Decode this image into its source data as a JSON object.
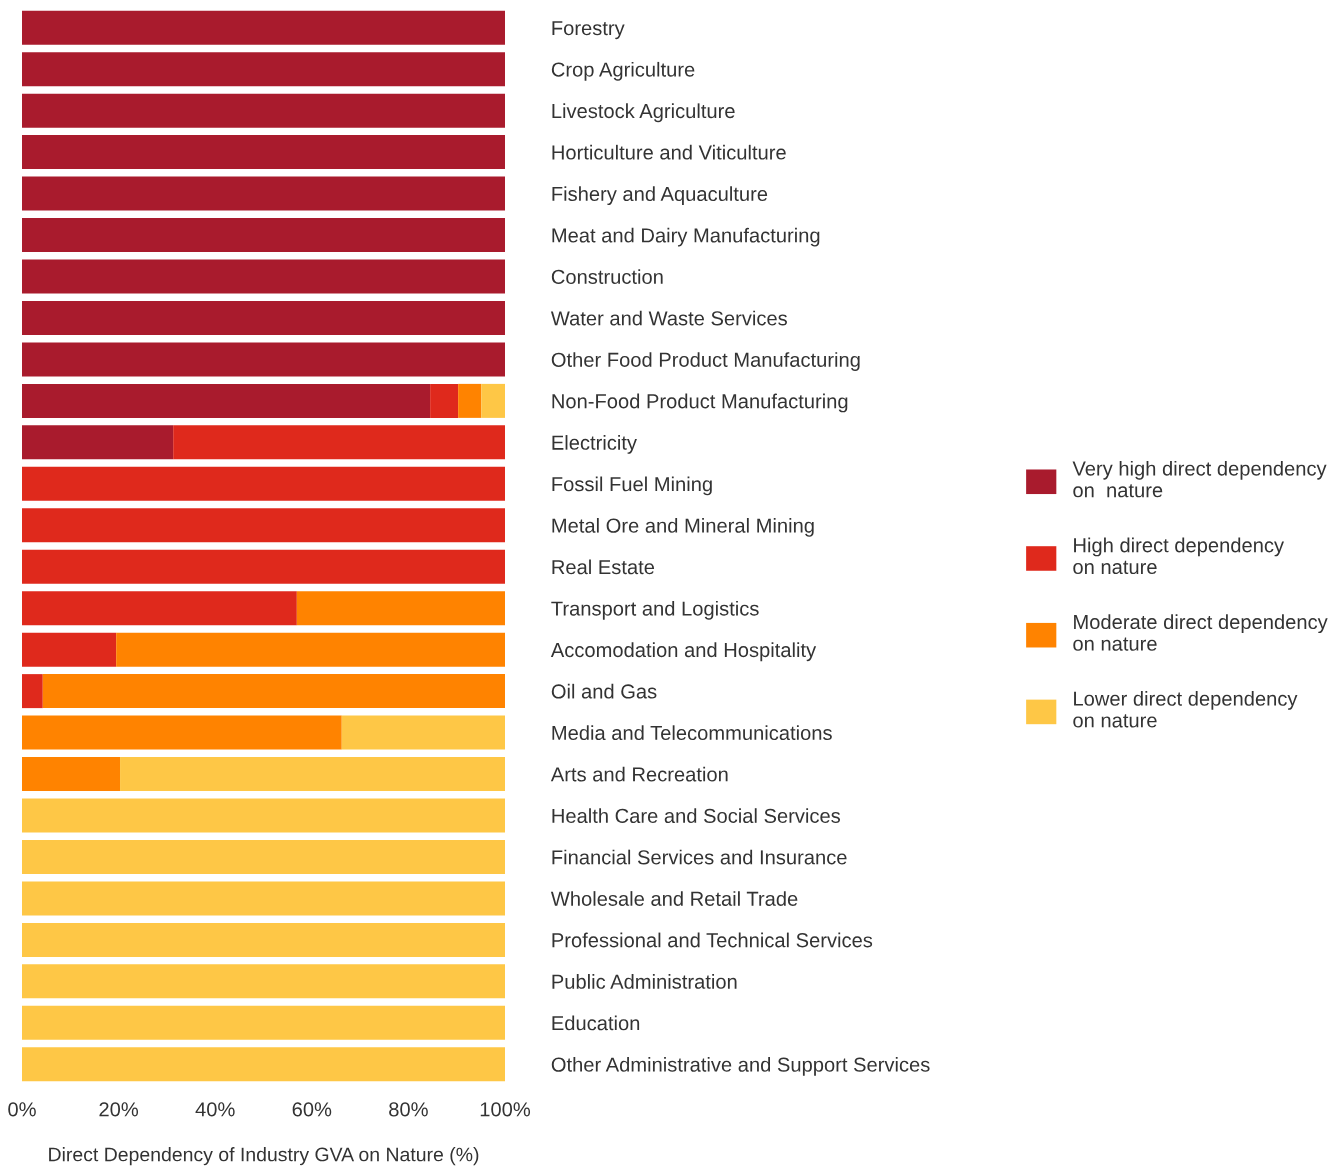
{
  "chart_data": {
    "type": "bar",
    "orientation": "horizontal",
    "stacked": true,
    "xlabel": "Direct Dependency of Industry GVA on Nature (%)",
    "categories": [
      "Forestry",
      "Crop Agriculture",
      "Livestock Agriculture",
      "Horticulture and Viticulture",
      "Fishery and Aquaculture",
      "Meat and Dairy Manufacturing",
      "Construction",
      "Water and Waste Services",
      "Other Food Product Manufacturing",
      "Non-Food Product Manufacturing",
      "Electricity",
      "Fossil Fuel Mining",
      "Metal Ore and Mineral Mining",
      "Real Estate",
      "Transport and Logistics",
      "Accomodation and Hospitality",
      "Oil and Gas",
      "Media and Telecommunications",
      "Arts and Recreation",
      "Health Care and Social Services",
      "Financial Services and Insurance",
      "Wholesale and Retail Trade",
      "Professional and Technical Services",
      "Public Administration",
      "Education",
      "Other Administrative and Support Services"
    ],
    "series": [
      {
        "name": "Very high direct dependency\non  nature",
        "color": "#a91b2d",
        "values": [
          100,
          100,
          100,
          100,
          100,
          100,
          100,
          100,
          100,
          84.5,
          31.3,
          0,
          0,
          0,
          0,
          0,
          0,
          0,
          0,
          0,
          0,
          0,
          0,
          0,
          0,
          0
        ]
      },
      {
        "name": "High direct dependency\non nature",
        "color": "#df291c",
        "values": [
          0,
          0,
          0,
          0,
          0,
          0,
          0,
          0,
          0,
          5.8,
          68.7,
          100,
          100,
          100,
          56.9,
          19.5,
          4.3,
          0,
          0,
          0,
          0,
          0,
          0,
          0,
          0,
          0
        ]
      },
      {
        "name": "Moderate direct dependency\non nature",
        "color": "#ff8300",
        "values": [
          0,
          0,
          0,
          0,
          0,
          0,
          0,
          0,
          0,
          4.8,
          0,
          0,
          0,
          0,
          43.1,
          80.5,
          95.7,
          66.2,
          20.3,
          0,
          0,
          0,
          0,
          0,
          0,
          0
        ]
      },
      {
        "name": "Lower direct dependency\non nature",
        "color": "#fec746",
        "values": [
          0,
          0,
          0,
          0,
          0,
          0,
          0,
          0,
          0,
          4.9,
          0,
          0,
          0,
          0,
          0,
          0,
          0,
          33.8,
          79.7,
          100,
          100,
          100,
          100,
          100,
          100,
          100
        ]
      }
    ],
    "xlim": [
      0,
      100
    ],
    "xticks": [
      {
        "value": 0,
        "label": "0%"
      },
      {
        "value": 20,
        "label": "20%"
      },
      {
        "value": 40,
        "label": "40%"
      },
      {
        "value": 60,
        "label": "60%"
      },
      {
        "value": 80,
        "label": "80%"
      },
      {
        "value": 100,
        "label": "100%"
      }
    ],
    "grid": false,
    "legend": "right"
  }
}
